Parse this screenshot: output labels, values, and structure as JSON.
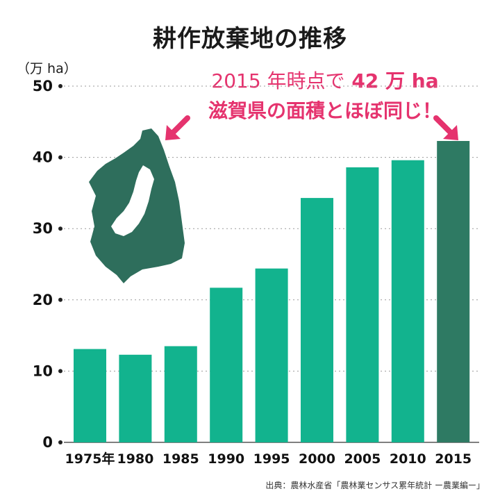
{
  "title": "耕作放棄地の推移",
  "unit_label": "（万 ha）",
  "callout": {
    "line1_prefix": "2015 年時点で",
    "line1_value": "42 万 ha",
    "line2": "滋賀県の面積とほぼ同じ！"
  },
  "source": "出典：農林水産省「農林業センサス累年統計 ー農業編ー」",
  "colors": {
    "bar": "#12b38e",
    "bar_highlight": "#2e7a63",
    "accent": "#e5336e",
    "map": "#2e6e5c"
  },
  "chart_data": {
    "type": "bar",
    "title": "耕作放棄地の推移",
    "ylabel": "（万 ha）",
    "xlabel": "",
    "categories": [
      "1975年",
      "1980",
      "1985",
      "1990",
      "1995",
      "2000",
      "2005",
      "2010",
      "2015"
    ],
    "values": [
      13.1,
      12.3,
      13.5,
      21.7,
      24.4,
      34.3,
      38.6,
      39.6,
      42.3
    ],
    "highlight_index": 8,
    "ylim": [
      0,
      50
    ],
    "yticks": [
      0,
      10,
      20,
      30,
      40,
      50
    ],
    "grid": true
  }
}
